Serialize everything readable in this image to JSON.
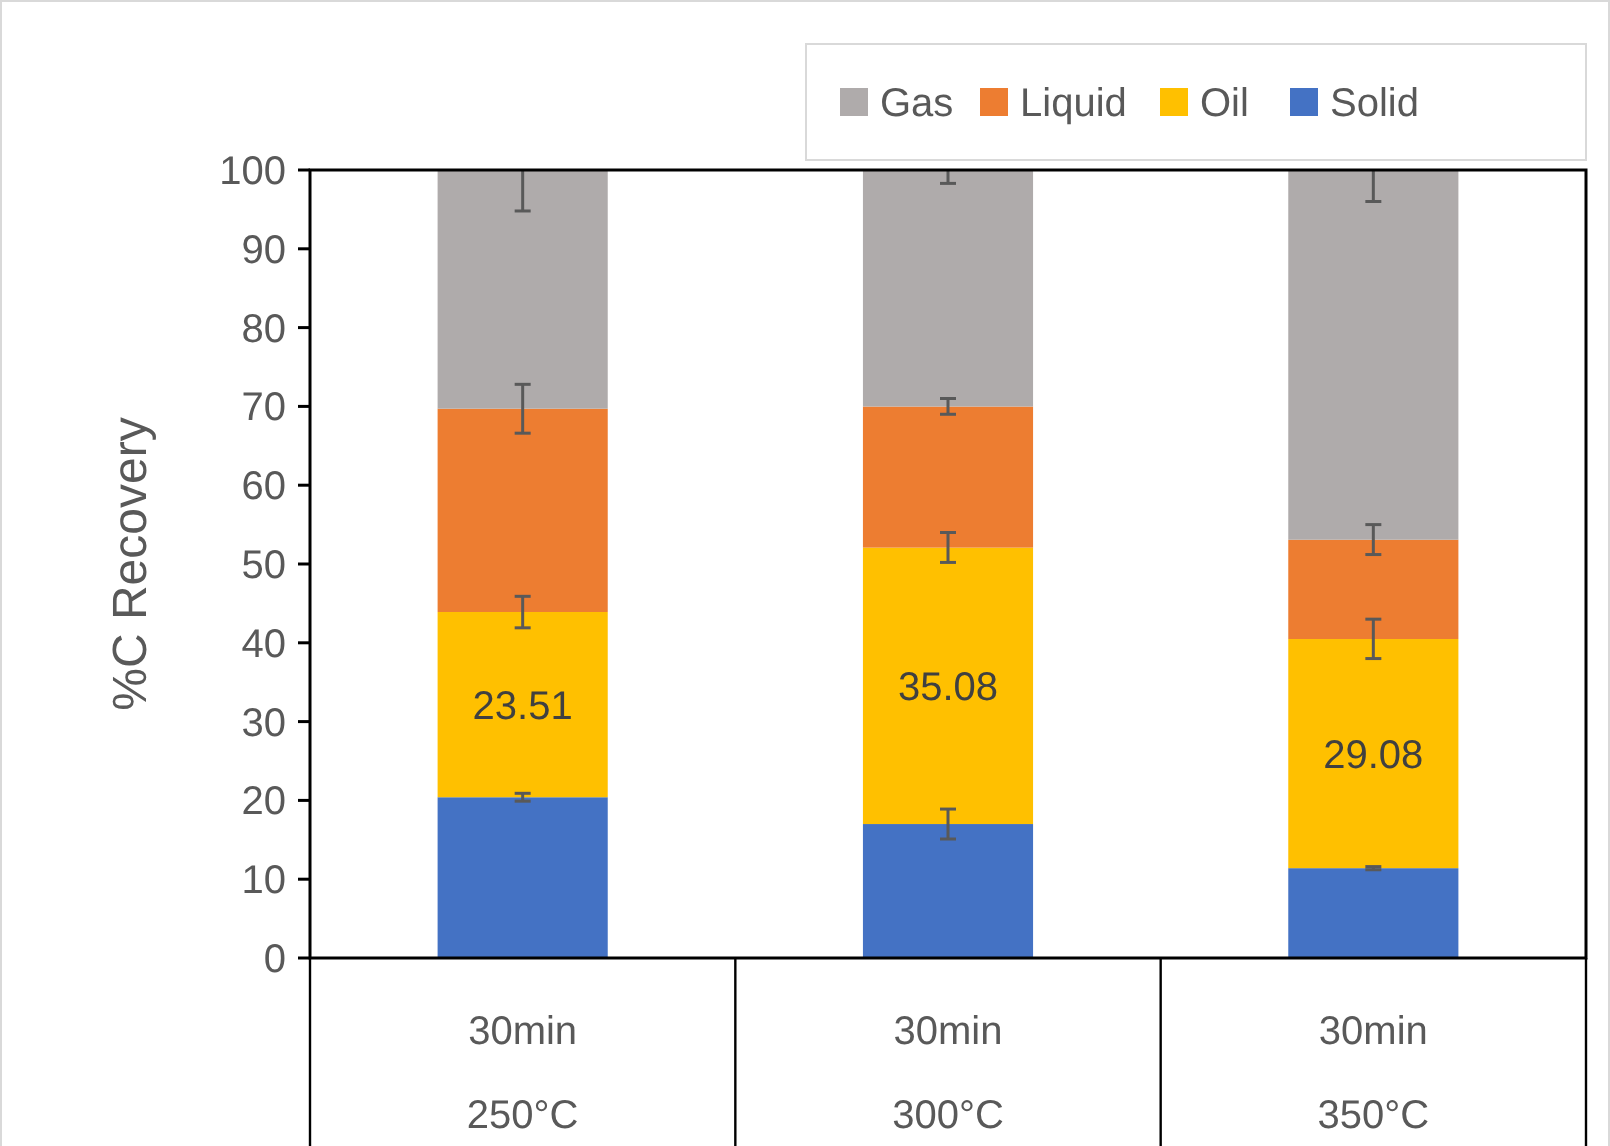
{
  "chart_data": {
    "type": "bar",
    "stacked": true,
    "ylabel": "%C Recovery",
    "categories": [
      "30min\n250°C",
      "30min\n300°C",
      "30min\n350°C"
    ],
    "ylim": [
      0,
      100
    ],
    "yticks": [
      0,
      10,
      20,
      30,
      40,
      50,
      60,
      70,
      80,
      90,
      100
    ],
    "grid": false,
    "legend": "top right",
    "series": [
      {
        "name": "Solid",
        "color": "#4472c4",
        "values": [
          20.4,
          17.0,
          11.4
        ],
        "errors": [
          [
            19.9,
            20.9
          ],
          [
            15.1,
            18.9
          ],
          [
            11.2,
            11.6
          ]
        ]
      },
      {
        "name": "Oil",
        "color": "#ffc000",
        "values": [
          23.51,
          35.08,
          29.08
        ],
        "errors": [
          [
            41.9,
            45.9
          ],
          [
            50.2,
            54.0
          ],
          [
            38.0,
            43.0
          ]
        ],
        "value_labels": [
          "23.51",
          "35.08",
          "29.08"
        ]
      },
      {
        "name": "Liquid",
        "color": "#ed7d31",
        "values": [
          25.8,
          17.9,
          12.6
        ],
        "errors": [
          [
            66.6,
            72.8
          ],
          [
            69.0,
            71.0
          ],
          [
            51.2,
            55.0
          ]
        ]
      },
      {
        "name": "Gas",
        "color": "#afabab",
        "values": [
          30.3,
          30.0,
          46.9
        ],
        "errors": [
          [
            94.8,
            100
          ],
          [
            98.3,
            100
          ],
          [
            96.0,
            100
          ]
        ]
      }
    ]
  }
}
